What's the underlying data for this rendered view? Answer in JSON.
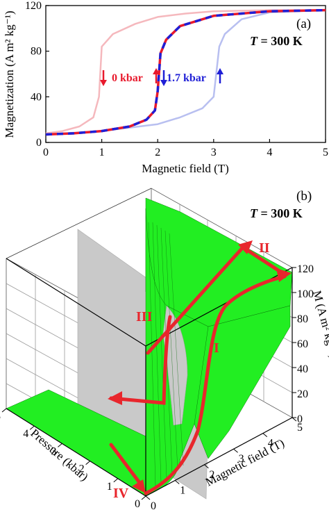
{
  "chart_data": [
    {
      "panel": "(a)",
      "type": "line",
      "annotation_temperature": "T = 300 K",
      "temperature_symbol": "T",
      "temperature_value": "= 300 K",
      "xlabel": "Magnetic field (T)",
      "ylabel": "Magnetization (A m² kg⁻¹)",
      "xlim": [
        0,
        5
      ],
      "ylim": [
        0,
        120
      ],
      "xticks": [
        "0",
        "1",
        "2",
        "3",
        "4",
        "5"
      ],
      "yticks": [
        "0",
        "40",
        "80",
        "120"
      ],
      "grid": false,
      "labels": {
        "zero": "0 kbar",
        "high": "1.7 kbar"
      },
      "colors": {
        "zero": "#e8192c",
        "high": "#1f1fd6",
        "zero_faint": "#f5b8bd",
        "high_faint": "#b8bff0"
      },
      "series": [
        {
          "name": "0 kbar (faint, increasing)",
          "x": [
            0,
            0.3,
            0.6,
            0.85,
            0.95,
            1.0,
            1.2,
            1.6,
            2.0,
            2.5,
            3.0,
            4.0,
            5.0
          ],
          "y": [
            8,
            10,
            14,
            22,
            40,
            84,
            95,
            104,
            110,
            113,
            115,
            116,
            116
          ]
        },
        {
          "name": "0 kbar (faint, decreasing)",
          "x": [
            5.0,
            4.0,
            3.5,
            3.2,
            3.1,
            3.0,
            2.8,
            2.4,
            2.0,
            1.0,
            0
          ],
          "y": [
            116,
            114,
            108,
            95,
            84,
            40,
            30,
            22,
            16,
            10,
            7
          ]
        },
        {
          "name": "0 kbar",
          "x": [
            0,
            0.5,
            1.0,
            1.5,
            1.8,
            1.95,
            2.0,
            2.05,
            2.15,
            2.4,
            3.0,
            4.0,
            5.0
          ],
          "y": [
            7,
            8,
            10,
            14,
            20,
            28,
            45,
            78,
            90,
            102,
            111,
            115,
            116
          ]
        },
        {
          "name": "1.7 kbar",
          "x": [
            0,
            0.5,
            1.0,
            1.5,
            1.8,
            1.95,
            2.0,
            2.05,
            2.15,
            2.4,
            3.0,
            4.0,
            5.0
          ],
          "y": [
            7,
            8,
            10,
            14,
            20,
            28,
            45,
            78,
            90,
            102,
            111,
            115,
            116
          ]
        }
      ]
    },
    {
      "panel": "(b)",
      "type": "surface",
      "annotation_temperature": "T = 300 K",
      "temperature_symbol": "T",
      "temperature_value": "= 300 K",
      "xlabel": "Pressure (kbar)",
      "ylabel": "Magnetic field (T)",
      "zlabel": "M (A m² kg⁻¹)",
      "xlim": [
        0,
        5
      ],
      "ylim": [
        0,
        5
      ],
      "zlim": [
        0,
        120
      ],
      "pressure_ticks": [
        "0",
        "1",
        "2",
        "3",
        "4",
        "5"
      ],
      "field_ticks": [
        "0",
        "1",
        "2",
        "3",
        "4",
        "5"
      ],
      "m_ticks": [
        "0",
        "20",
        "40",
        "60",
        "80",
        "100",
        "120"
      ],
      "path_labels": [
        "I",
        "II",
        "III",
        "IV"
      ],
      "colors": {
        "surface": "#22ee22",
        "plane": "#c9c9c9",
        "path": "#e8262c"
      }
    }
  ]
}
